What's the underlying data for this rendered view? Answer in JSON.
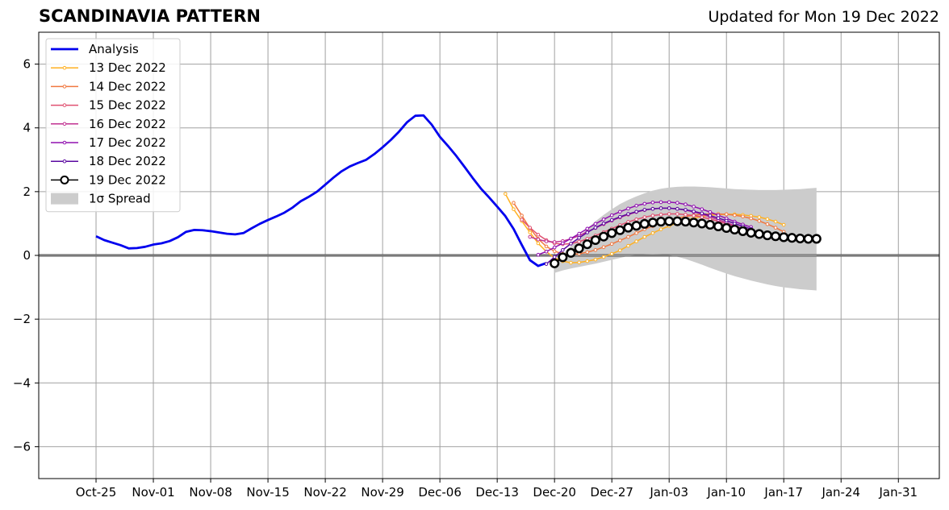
{
  "chart_data": {
    "type": "line",
    "title": "SCANDINAVIA PATTERN",
    "subtitle": "Updated for Mon 19 Dec 2022",
    "ylim": [
      -7,
      7
    ],
    "yticks": [
      -6,
      -4,
      -2,
      0,
      2,
      4,
      6
    ],
    "ytick_labels": [
      "−6",
      "−4",
      "−2",
      "0",
      "2",
      "4",
      "6"
    ],
    "xlim": [
      "2022-10-18",
      "2023-02-05"
    ],
    "xticks": [
      "2022-10-25",
      "2022-11-01",
      "2022-11-08",
      "2022-11-15",
      "2022-11-22",
      "2022-11-29",
      "2022-12-06",
      "2022-12-13",
      "2022-12-20",
      "2022-12-27",
      "2023-01-03",
      "2023-01-10",
      "2023-01-17",
      "2023-01-24",
      "2023-01-31"
    ],
    "xtick_labels": [
      "Oct-25",
      "Nov-01",
      "Nov-08",
      "Nov-15",
      "Nov-22",
      "Nov-29",
      "Dec-06",
      "Dec-13",
      "Dec-20",
      "Dec-27",
      "Jan-03",
      "Jan-10",
      "Jan-17",
      "Jan-24",
      "Jan-31"
    ],
    "grid": true,
    "legend_position": "top-left",
    "analysis": {
      "name": "Analysis",
      "color": "#0000ee",
      "points": [
        [
          "2022-10-25",
          0.6
        ],
        [
          "2022-10-26",
          0.48
        ],
        [
          "2022-10-27",
          0.4
        ],
        [
          "2022-10-28",
          0.32
        ],
        [
          "2022-10-29",
          0.22
        ],
        [
          "2022-10-30",
          0.23
        ],
        [
          "2022-10-31",
          0.27
        ],
        [
          "2022-11-01",
          0.34
        ],
        [
          "2022-11-02",
          0.38
        ],
        [
          "2022-11-03",
          0.45
        ],
        [
          "2022-11-04",
          0.57
        ],
        [
          "2022-11-05",
          0.74
        ],
        [
          "2022-11-06",
          0.8
        ],
        [
          "2022-11-07",
          0.79
        ],
        [
          "2022-11-08",
          0.76
        ],
        [
          "2022-11-09",
          0.72
        ],
        [
          "2022-11-10",
          0.68
        ],
        [
          "2022-11-11",
          0.66
        ],
        [
          "2022-11-12",
          0.7
        ],
        [
          "2022-11-13",
          0.85
        ],
        [
          "2022-11-14",
          0.99
        ],
        [
          "2022-11-15",
          1.11
        ],
        [
          "2022-11-16",
          1.22
        ],
        [
          "2022-11-17",
          1.34
        ],
        [
          "2022-11-18",
          1.5
        ],
        [
          "2022-11-19",
          1.7
        ],
        [
          "2022-11-20",
          1.84
        ],
        [
          "2022-11-21",
          2.0
        ],
        [
          "2022-11-22",
          2.22
        ],
        [
          "2022-11-23",
          2.44
        ],
        [
          "2022-11-24",
          2.64
        ],
        [
          "2022-11-25",
          2.79
        ],
        [
          "2022-11-26",
          2.9
        ],
        [
          "2022-11-27",
          3.0
        ],
        [
          "2022-11-28",
          3.18
        ],
        [
          "2022-11-29",
          3.39
        ],
        [
          "2022-11-30",
          3.62
        ],
        [
          "2022-12-01",
          3.88
        ],
        [
          "2022-12-02",
          4.18
        ],
        [
          "2022-12-03",
          4.38
        ],
        [
          "2022-12-04",
          4.39
        ],
        [
          "2022-12-05",
          4.1
        ],
        [
          "2022-12-06",
          3.72
        ],
        [
          "2022-12-07",
          3.43
        ],
        [
          "2022-12-08",
          3.12
        ],
        [
          "2022-12-09",
          2.78
        ],
        [
          "2022-12-10",
          2.43
        ],
        [
          "2022-12-11",
          2.1
        ],
        [
          "2022-12-12",
          1.82
        ],
        [
          "2022-12-13",
          1.53
        ],
        [
          "2022-12-14",
          1.23
        ],
        [
          "2022-12-15",
          0.83
        ],
        [
          "2022-12-16",
          0.33
        ],
        [
          "2022-12-17",
          -0.15
        ],
        [
          "2022-12-18",
          -0.33
        ],
        [
          "2022-12-19",
          -0.24
        ]
      ]
    },
    "series": [
      {
        "name": "13 Dec 2022",
        "color": "#ffb020",
        "start": "2022-12-14",
        "values": [
          1.93,
          1.45,
          1.08,
          0.72,
          0.38,
          0.12,
          -0.08,
          -0.18,
          -0.23,
          -0.22,
          -0.18,
          -0.13,
          -0.05,
          0.05,
          0.16,
          0.3,
          0.44,
          0.58,
          0.7,
          0.82,
          0.92,
          1.02,
          1.1,
          1.17,
          1.22,
          1.26,
          1.28,
          1.29,
          1.29,
          1.27,
          1.24,
          1.2,
          1.14,
          1.06,
          0.96
        ]
      },
      {
        "name": "14 Dec 2022",
        "color": "#f07840",
        "start": "2022-12-15",
        "values": [
          1.65,
          1.25,
          0.85,
          0.52,
          0.28,
          0.13,
          0.05,
          0.03,
          0.05,
          0.1,
          0.17,
          0.26,
          0.36,
          0.47,
          0.58,
          0.7,
          0.82,
          0.92,
          1.02,
          1.1,
          1.17,
          1.22,
          1.26,
          1.29,
          1.3,
          1.3,
          1.29,
          1.26,
          1.22,
          1.16,
          1.08,
          0.98,
          0.87,
          0.74
        ]
      },
      {
        "name": "15 Dec 2022",
        "color": "#e05070",
        "start": "2022-12-16",
        "values": [
          1.12,
          0.87,
          0.65,
          0.48,
          0.38,
          0.35,
          0.37,
          0.43,
          0.52,
          0.62,
          0.73,
          0.84,
          0.95,
          1.05,
          1.13,
          1.2,
          1.25,
          1.28,
          1.3,
          1.3,
          1.28,
          1.25,
          1.2,
          1.14,
          1.07,
          0.99,
          0.92,
          0.85,
          0.79,
          0.73
        ]
      },
      {
        "name": "16 Dec 2022",
        "color": "#c03090",
        "start": "2022-12-17",
        "values": [
          0.58,
          0.5,
          0.44,
          0.42,
          0.45,
          0.52,
          0.62,
          0.74,
          0.86,
          0.98,
          1.09,
          1.19,
          1.28,
          1.36,
          1.42,
          1.46,
          1.48,
          1.48,
          1.46,
          1.42,
          1.36,
          1.29,
          1.21,
          1.12,
          1.03,
          0.93,
          0.84,
          0.76,
          0.69
        ]
      },
      {
        "name": "17 Dec 2022",
        "color": "#9010b0",
        "start": "2022-12-18",
        "values": [
          0.02,
          0.12,
          0.25,
          0.38,
          0.53,
          0.68,
          0.84,
          0.99,
          1.13,
          1.26,
          1.37,
          1.47,
          1.56,
          1.62,
          1.66,
          1.67,
          1.67,
          1.65,
          1.6,
          1.53,
          1.45,
          1.36,
          1.26,
          1.16,
          1.06,
          0.97,
          0.89
        ]
      },
      {
        "name": "18 Dec 2022",
        "color": "#5a08a0",
        "start": "2022-12-19",
        "values": [
          -0.27,
          -0.05,
          0.17,
          0.37,
          0.55,
          0.72,
          0.87,
          1.0,
          1.11,
          1.21,
          1.3,
          1.37,
          1.43,
          1.46,
          1.48,
          1.48,
          1.46,
          1.43,
          1.38,
          1.32,
          1.25,
          1.17,
          1.09,
          1.0,
          0.91,
          0.83
        ]
      },
      {
        "name": "19 Dec 2022",
        "color": "#000000",
        "start": "2022-12-20",
        "values": [
          -0.25,
          -0.06,
          0.08,
          0.22,
          0.35,
          0.48,
          0.59,
          0.7,
          0.79,
          0.87,
          0.93,
          0.99,
          1.03,
          1.06,
          1.07,
          1.07,
          1.06,
          1.03,
          1.0,
          0.96,
          0.91,
          0.86,
          0.81,
          0.76,
          0.71,
          0.67,
          0.63,
          0.6,
          0.57,
          0.55,
          0.53,
          0.52,
          0.52
        ]
      }
    ],
    "spread": {
      "name": "1σ Spread",
      "color": "#cccccc",
      "start": "2022-12-20",
      "upper": [
        -0.22,
        0.02,
        0.3,
        0.58,
        0.84,
        1.07,
        1.27,
        1.45,
        1.61,
        1.74,
        1.85,
        1.95,
        2.03,
        2.09,
        2.13,
        2.15,
        2.16,
        2.16,
        2.15,
        2.14,
        2.12,
        2.1,
        2.08,
        2.07,
        2.06,
        2.05,
        2.05,
        2.05,
        2.06,
        2.07,
        2.08,
        2.1,
        2.12
      ],
      "lower": [
        -0.55,
        -0.47,
        -0.41,
        -0.36,
        -0.31,
        -0.26,
        -0.2,
        -0.14,
        -0.08,
        -0.02,
        0.02,
        0.04,
        0.05,
        0.04,
        0.01,
        -0.04,
        -0.11,
        -0.2,
        -0.29,
        -0.39,
        -0.48,
        -0.57,
        -0.65,
        -0.72,
        -0.79,
        -0.85,
        -0.91,
        -0.96,
        -1.0,
        -1.03,
        -1.06,
        -1.08,
        -1.1
      ]
    }
  }
}
